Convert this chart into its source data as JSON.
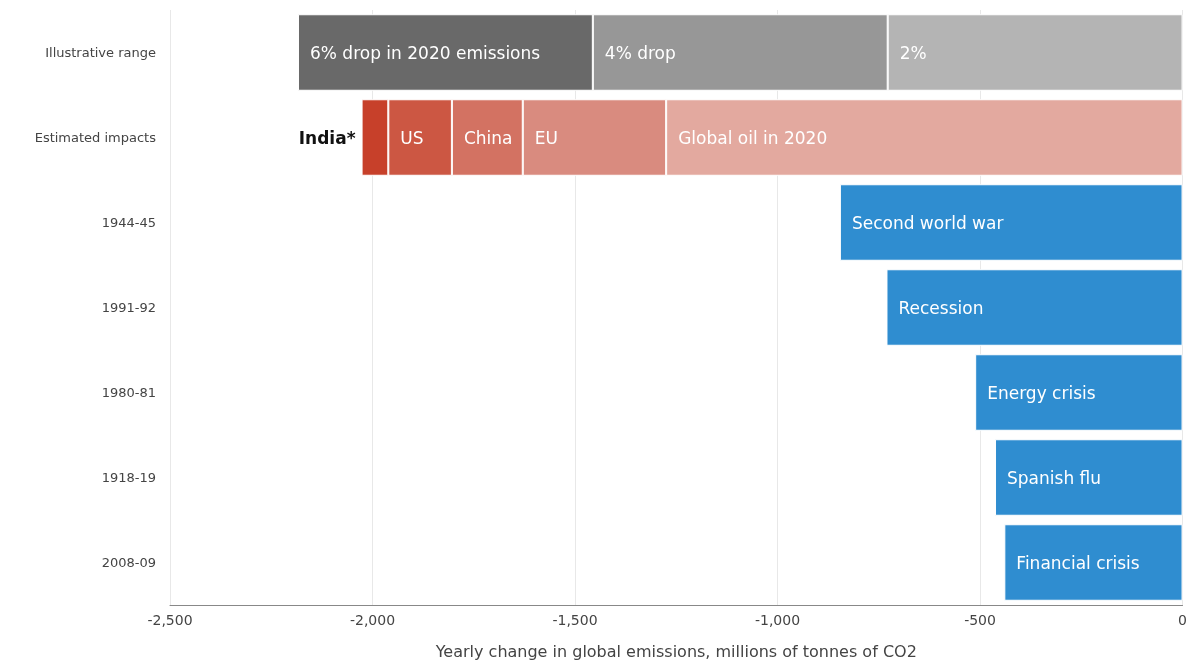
{
  "chart_data": {
    "type": "bar",
    "orientation": "horizontal",
    "stacked": true,
    "categories": [
      "Illustrative range",
      "Estimated impacts",
      "1944-45",
      "1991-92",
      "1980-81",
      "1918-19",
      "2008-09"
    ],
    "series": [
      {
        "name": "2%",
        "color": "#b4b4b4",
        "values": [
          -728,
          null,
          null,
          null,
          null,
          null,
          null
        ]
      },
      {
        "name": "4% drop",
        "color": "#979797",
        "values": [
          -728,
          null,
          null,
          null,
          null,
          null,
          null
        ]
      },
      {
        "name": "6% drop in 2020 emissions",
        "color": "#696969",
        "values": [
          -728,
          null,
          null,
          null,
          null,
          null,
          null
        ]
      },
      {
        "name": "Global oil in 2020",
        "color": "#e3a99f",
        "values": [
          null,
          -1275,
          null,
          null,
          null,
          null,
          null
        ]
      },
      {
        "name": "EU",
        "color": "#d98b7f",
        "values": [
          null,
          -354,
          null,
          null,
          null,
          null,
          null
        ]
      },
      {
        "name": "China",
        "color": "#d37262",
        "values": [
          null,
          -175,
          null,
          null,
          null,
          null,
          null
        ]
      },
      {
        "name": "US",
        "color": "#cc5743",
        "values": [
          null,
          -157,
          null,
          null,
          null,
          null,
          null
        ]
      },
      {
        "name": "India*",
        "color": "#c7402a",
        "values": [
          null,
          -66,
          null,
          null,
          null,
          null,
          null
        ]
      },
      {
        "color": "#2f8dd0",
        "values": [
          null,
          null,
          -846,
          -731,
          -512,
          -463,
          -440
        ],
        "value_labels": [
          null,
          null,
          "Second world war",
          "Recession",
          "Energy crisis",
          "Spanish flu",
          "Financial crisis"
        ]
      }
    ],
    "xlim": [
      -2500,
      0
    ],
    "xticks": [
      {
        "value": -2500,
        "label": "-2,500"
      },
      {
        "value": -2000,
        "label": "-2,000"
      },
      {
        "value": -1500,
        "label": "-1,500"
      },
      {
        "value": -1000,
        "label": "-1,000"
      },
      {
        "value": -500,
        "label": "-500"
      },
      {
        "value": 0,
        "label": "0"
      }
    ],
    "xlabel": "Yearly change in global emissions, millions of tonnes of CO2",
    "grid": "x",
    "legend": false
  }
}
